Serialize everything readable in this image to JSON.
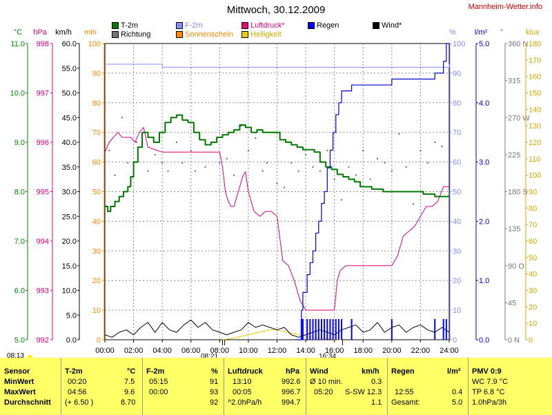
{
  "page": {
    "title": "Mittwoch, 30.12.2009",
    "site": "Mannheim-Wetter.info",
    "sunrise": "08:13",
    "sunset": "16:34",
    "noon": "08:21"
  },
  "legend": [
    {
      "label": "T-2m",
      "color": "#007700"
    },
    {
      "label": "Richtung",
      "color": "#777777"
    },
    {
      "label": "F-2m",
      "color": "#8888ff"
    },
    {
      "label": "Sonnenschein",
      "color": "#ff8800"
    },
    {
      "label": "Luftdruck*",
      "color": "#ee0077"
    },
    {
      "label": "Helligkeit",
      "color": "#eecc00"
    },
    {
      "label": "Regen",
      "color": "#0000ff"
    },
    {
      "label": "Wind*",
      "color": "#000000"
    }
  ],
  "axes": {
    "x_ticks": [
      "00:00",
      "02:00",
      "04:00",
      "06:00",
      "08:00",
      "10:00",
      "12:00",
      "14:00",
      "16:00",
      "18:00",
      "20:00",
      "22:00",
      "24:00"
    ],
    "temp": {
      "unit": "°C",
      "ticks": [
        "11.0",
        "10.0",
        "9.0",
        "8.0",
        "7.0",
        "6.0",
        "5.0"
      ],
      "color": "#008800"
    },
    "pressure": {
      "unit": "hPa",
      "ticks": [
        "998",
        "997",
        "996",
        "995",
        "994",
        "993",
        "992"
      ],
      "color": "#dd0077"
    },
    "wind": {
      "unit": "km/h",
      "ticks": [
        "60.0",
        "55.0",
        "50.0",
        "45.0",
        "40.0",
        "35.0",
        "30.0",
        "25.0",
        "20.0",
        "15.0",
        "10.0",
        "5.0",
        "0.0"
      ],
      "color": "#000000"
    },
    "sun": {
      "unit": "min",
      "ticks": [
        "100",
        "90",
        "80",
        "70",
        "60",
        "50",
        "40",
        "30",
        "20",
        "10",
        "0"
      ],
      "color": "#ff8800"
    },
    "humidity": {
      "unit": "%",
      "ticks": [
        "100",
        "90",
        "80",
        "70",
        "60",
        "50",
        "40",
        "30",
        "20",
        "10",
        "0"
      ],
      "color": "#8888ff"
    },
    "rain": {
      "unit": "l/m²",
      "ticks": [
        "5.0",
        "4.0",
        "3.0",
        "2.0",
        "1.0",
        "0.0"
      ],
      "color": "#0000cc"
    },
    "direction": {
      "unit": "°",
      "ticks": [
        "360 N",
        "315",
        "270 W",
        "225",
        "180 S",
        "135",
        "90 O",
        "45",
        "0 N"
      ],
      "color": "#777777"
    },
    "light": {
      "unit": "klux",
      "ticks": [
        "180",
        "170",
        "160",
        "150",
        "140",
        "130",
        "120",
        "110",
        "100",
        "90",
        "80",
        "70",
        "60",
        "50",
        "40",
        "30",
        "20",
        "10",
        "0"
      ],
      "color": "#ccaa00"
    }
  },
  "chart_data": {
    "type": "line",
    "x_unit": "hours",
    "xlim": [
      0,
      24
    ],
    "series": [
      {
        "name": "T-2m",
        "unit": "°C",
        "ylim": [
          5,
          11
        ],
        "x": [
          0.0,
          0.2,
          0.4,
          0.7,
          1.0,
          1.3,
          1.6,
          1.8,
          2.0,
          2.3,
          2.6,
          3.0,
          3.4,
          3.8,
          4.2,
          4.6,
          5.0,
          5.4,
          5.8,
          6.2,
          6.6,
          7.0,
          7.4,
          7.8,
          8.2,
          8.6,
          9.0,
          9.4,
          9.8,
          10.2,
          10.6,
          11.0,
          11.4,
          11.8,
          12.2,
          12.6,
          13.0,
          13.4,
          13.8,
          14.2,
          14.6,
          15.0,
          15.4,
          15.8,
          16.2,
          16.6,
          17.0,
          17.4,
          17.8,
          18.2,
          18.6,
          19.0,
          19.4,
          19.8,
          20.2,
          20.6,
          21.0,
          21.4,
          21.8,
          22.2,
          22.6,
          23.0,
          23.4,
          23.8,
          24.0
        ],
        "values": [
          7.7,
          7.6,
          7.7,
          7.8,
          7.9,
          8.0,
          8.1,
          8.3,
          8.6,
          8.9,
          9.2,
          9.1,
          9.0,
          9.2,
          9.4,
          9.5,
          9.55,
          9.45,
          9.4,
          9.2,
          9.05,
          8.95,
          9.0,
          9.1,
          9.15,
          9.2,
          9.25,
          9.35,
          9.3,
          9.2,
          9.25,
          9.2,
          9.2,
          9.2,
          9.05,
          9.0,
          8.95,
          8.9,
          8.85,
          8.85,
          8.8,
          8.6,
          8.5,
          8.45,
          8.35,
          8.3,
          8.25,
          8.2,
          8.1,
          8.1,
          8.05,
          8.05,
          8.0,
          8.0,
          8.0,
          8.0,
          8.0,
          8.0,
          8.0,
          7.95,
          7.95,
          7.9,
          7.9,
          7.9,
          7.9
        ]
      },
      {
        "name": "F-2m",
        "unit": "%",
        "ylim": [
          0,
          100
        ],
        "x": [
          0,
          2,
          4,
          6,
          8,
          10,
          12,
          14,
          16,
          18,
          20,
          22,
          24
        ],
        "values": [
          93,
          93,
          92,
          92,
          92,
          92,
          92,
          92,
          92,
          92,
          92,
          92,
          93
        ]
      },
      {
        "name": "Luftdruck*",
        "unit": "hPa",
        "ylim": [
          992,
          998
        ],
        "x": [
          0.0,
          0.3,
          0.6,
          0.9,
          1.2,
          1.5,
          1.8,
          2.1,
          2.4,
          2.7,
          3.0,
          3.5,
          4.0,
          5.0,
          6.0,
          7.0,
          7.5,
          8.0,
          8.2,
          8.4,
          8.6,
          8.8,
          9.0,
          9.3,
          9.6,
          9.8,
          10.0,
          10.4,
          10.8,
          11.2,
          11.6,
          12.0,
          12.4,
          12.8,
          13.2,
          13.6,
          14.0,
          14.5,
          15.0,
          15.5,
          16.0,
          16.2,
          16.4,
          16.8,
          17.2,
          17.6,
          18.0,
          18.5,
          19.0,
          19.5,
          20.0,
          20.4,
          20.8,
          21.2,
          21.6,
          22.0,
          22.4,
          22.8,
          23.2,
          23.6,
          24.0
        ],
        "values": [
          995.8,
          996.0,
          996.1,
          996.2,
          996.1,
          996.1,
          996.1,
          996.0,
          996.2,
          996.3,
          995.9,
          995.85,
          995.8,
          995.8,
          995.8,
          995.8,
          995.8,
          995.8,
          995.5,
          995.0,
          994.8,
          994.7,
          994.7,
          995.0,
          995.3,
          995.4,
          995.0,
          994.6,
          994.5,
          994.6,
          994.6,
          994.5,
          993.6,
          993.5,
          993.2,
          992.8,
          992.6,
          992.6,
          992.6,
          992.6,
          992.6,
          993.2,
          993.4,
          993.5,
          993.5,
          993.5,
          993.5,
          993.5,
          993.5,
          993.5,
          993.5,
          993.7,
          994.1,
          994.2,
          994.3,
          994.5,
          994.7,
          994.7,
          994.8,
          995.1,
          995.1
        ]
      },
      {
        "name": "Regen",
        "unit": "l/m²",
        "ylim": [
          0,
          5
        ],
        "x": [
          13.3,
          13.7,
          13.8,
          14.1,
          14.3,
          14.5,
          14.7,
          14.9,
          15.1,
          15.3,
          15.5,
          15.7,
          15.9,
          16.1,
          16.3,
          16.5,
          17.2,
          17.7,
          18.4,
          20.0,
          21.0,
          22.0,
          22.6,
          23.0,
          23.4,
          23.6,
          23.8,
          24.0
        ],
        "values": [
          0.0,
          0.5,
          0.8,
          1.1,
          1.3,
          1.5,
          1.8,
          2.0,
          2.3,
          2.5,
          2.9,
          3.2,
          3.5,
          3.8,
          4.0,
          4.2,
          4.3,
          4.3,
          4.3,
          4.4,
          4.4,
          4.4,
          4.4,
          4.5,
          4.5,
          4.7,
          5.0,
          5.0
        ]
      },
      {
        "name": "Wind*",
        "unit": "km/h",
        "ylim": [
          0,
          60
        ],
        "x": [
          0,
          0.5,
          1,
          1.5,
          2,
          2.5,
          3,
          3.5,
          4,
          4.5,
          5,
          5.5,
          6,
          6.5,
          7,
          7.5,
          8,
          8.5,
          9,
          9.5,
          10,
          10.5,
          11,
          11.5,
          12,
          12.5,
          13,
          13.5,
          14,
          14.5,
          15,
          15.5,
          16,
          16.5,
          17,
          17.5,
          18,
          18.5,
          19,
          19.5,
          20,
          20.5,
          21,
          21.5,
          22,
          22.5,
          23,
          23.5,
          24
        ],
        "values": [
          1.0,
          0.5,
          1.5,
          2.0,
          1.0,
          2.5,
          3.5,
          1.5,
          3.5,
          2.0,
          1.5,
          3.0,
          4.0,
          2.5,
          3.5,
          2.0,
          1.5,
          1.0,
          1.5,
          2.0,
          3.5,
          2.5,
          3.0,
          2.5,
          2.0,
          2.5,
          1.0,
          0.5,
          1.0,
          1.5,
          2.0,
          1.5,
          1.0,
          2.0,
          2.5,
          3.0,
          1.5,
          2.0,
          3.5,
          1.5,
          2.5,
          3.0,
          1.5,
          2.5,
          3.0,
          2.0,
          1.5,
          2.5,
          1.5
        ]
      },
      {
        "name": "Richtung",
        "unit": "°",
        "ylim": [
          0,
          360
        ],
        "type": "scatter",
        "x": [
          0.3,
          0.7,
          1.2,
          1.6,
          2.2,
          2.6,
          3.0,
          3.5,
          4.0,
          4.4,
          5.0,
          5.4,
          6.0,
          6.3,
          7.0,
          7.5,
          8.0,
          8.5,
          9.0,
          9.5,
          10.0,
          10.5,
          11.0,
          11.3,
          12.0,
          12.5,
          13.0,
          13.5,
          14.0,
          14.5,
          15.0,
          15.5,
          16.0,
          16.5,
          17.0,
          17.5,
          18.0,
          18.5,
          19.0,
          19.5,
          20.0,
          20.5,
          21.0,
          21.5,
          22.0,
          22.5,
          23.0,
          23.5
        ],
        "values": [
          230,
          200,
          270,
          215,
          240,
          250,
          205,
          225,
          215,
          205,
          240,
          215,
          230,
          205,
          210,
          240,
          215,
          220,
          200,
          260,
          230,
          245,
          205,
          215,
          190,
          185,
          215,
          205,
          225,
          210,
          205,
          230,
          195,
          170,
          210,
          200,
          230,
          195,
          220,
          215,
          205,
          250,
          210,
          165,
          230,
          215,
          240,
          235
        ]
      },
      {
        "name": "Helligkeit",
        "unit": "klux",
        "ylim": [
          0,
          180
        ],
        "x": [
          8.2,
          8.6,
          9.0,
          9.5,
          10.0,
          10.5,
          11.0,
          11.5,
          12.0,
          12.5,
          13.0,
          13.5,
          14.0,
          14.5,
          15.0,
          15.5,
          16.0,
          16.5
        ],
        "values": [
          0.0,
          0.5,
          1.0,
          2.0,
          3.0,
          4.0,
          5.0,
          6.0,
          6.0,
          5.0,
          4.0,
          3.0,
          2.0,
          1.5,
          1.0,
          0.5,
          0.2,
          0.0
        ]
      }
    ]
  },
  "table": {
    "columns": [
      "Sensor",
      "T-2m",
      "°C",
      "F-2m",
      "%",
      "Luftdruck",
      "hPa",
      "Wind",
      "km/h",
      "Regen",
      "l/m²",
      "PMV 0:9"
    ],
    "rows": [
      {
        "label": "MinWert",
        "cells": [
          "00:20",
          "7.5",
          "05:15",
          "91",
          "13:10",
          "992.6",
          "Ø 10 min.",
          "0.3",
          "",
          "",
          "WC 7.9 °C"
        ]
      },
      {
        "label": "MaxWert",
        "cells": [
          "04:56",
          "9.6",
          "00:00",
          "93",
          "00:05",
          "996.7",
          "05:20",
          "S-SW 12.3",
          "12:55",
          "0.4",
          "TP 6.8 °C"
        ]
      },
      {
        "label": "Durchschnitt",
        "cells": [
          "(+ 6.50 )",
          "8.70",
          "",
          "92",
          "^2.0hPa/h",
          "994.7",
          "",
          "1.1",
          "Gesamt:",
          "5.0",
          "1.0hPa/3h"
        ]
      }
    ]
  }
}
